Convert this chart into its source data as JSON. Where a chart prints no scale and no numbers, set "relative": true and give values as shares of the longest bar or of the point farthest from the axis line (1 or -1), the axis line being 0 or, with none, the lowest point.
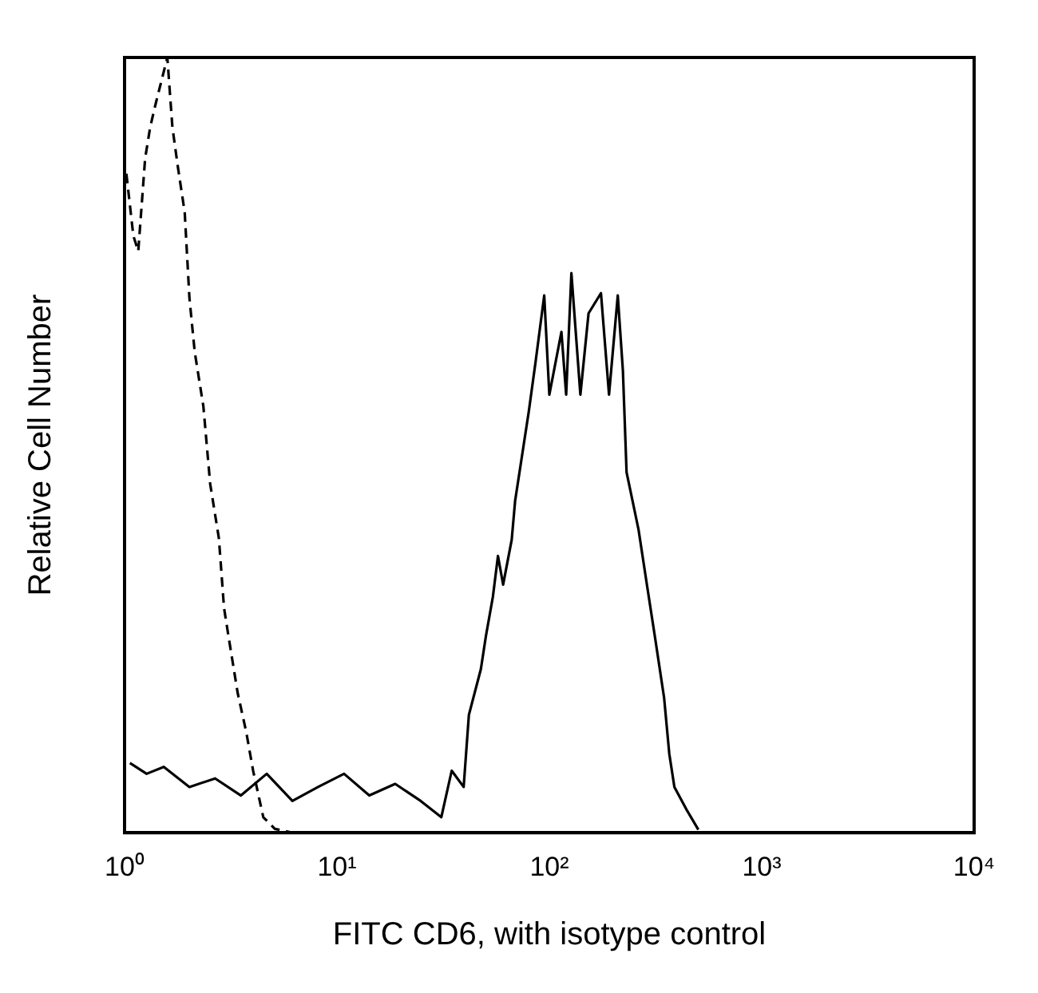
{
  "chart_data": {
    "type": "line",
    "xlabel": "FITC CD6, with isotype control",
    "ylabel": "Relative Cell Number",
    "relative": true,
    "log": "x",
    "grid": false,
    "legend": false,
    "marker": "none",
    "xlim": [
      1,
      10000
    ],
    "xticks": [
      {
        "value": 1,
        "label": "10⁰"
      },
      {
        "value": 10,
        "label": "10¹"
      },
      {
        "value": 100,
        "label": "10²"
      },
      {
        "value": 1000,
        "label": "10³"
      },
      {
        "value": 10000,
        "label": "10⁴"
      }
    ],
    "series": [
      {
        "color": "#000000",
        "line_style": "solid",
        "x": [
          1.06,
          1.27,
          1.53,
          2.02,
          2.67,
          3.53,
          4.67,
          6.17,
          8.15,
          10.8,
          14.2,
          18.8,
          24.8,
          31.0,
          34.7,
          39.5,
          41.8,
          47.6,
          50.3,
          54.2,
          57.3,
          60.6,
          66.5,
          69.0,
          75.7,
          80.0,
          86.1,
          94.6,
          100,
          114,
          120,
          127,
          140,
          153,
          175,
          191,
          210,
          222,
          231,
          263,
          288,
          316,
          347,
          367,
          388,
          442,
          503
        ],
        "values": [
          0.09,
          0.076,
          0.085,
          0.059,
          0.07,
          0.048,
          0.076,
          0.041,
          0.059,
          0.076,
          0.048,
          0.063,
          0.041,
          0.02,
          0.08,
          0.059,
          0.152,
          0.211,
          0.254,
          0.304,
          0.357,
          0.32,
          0.378,
          0.428,
          0.5,
          0.543,
          0.607,
          0.693,
          0.565,
          0.646,
          0.565,
          0.722,
          0.565,
          0.67,
          0.696,
          0.565,
          0.693,
          0.596,
          0.465,
          0.391,
          0.32,
          0.248,
          0.174,
          0.102,
          0.059,
          0.03,
          0.004
        ]
      },
      {
        "color": "#000000",
        "line_style": "dashed",
        "x": [
          1.02,
          1.1,
          1.16,
          1.25,
          1.32,
          1.4,
          1.59,
          1.68,
          1.78,
          1.92,
          2.02,
          2.14,
          2.35,
          2.53,
          2.78,
          2.94,
          3.1,
          3.41,
          3.74,
          4.03,
          4.5,
          5.1,
          6.2
        ],
        "values": [
          0.85,
          0.77,
          0.75,
          0.87,
          0.91,
          0.94,
          1,
          0.91,
          0.86,
          0.8,
          0.69,
          0.62,
          0.55,
          0.45,
          0.38,
          0.29,
          0.25,
          0.18,
          0.13,
          0.08,
          0.02,
          0.005,
          0
        ]
      }
    ]
  }
}
